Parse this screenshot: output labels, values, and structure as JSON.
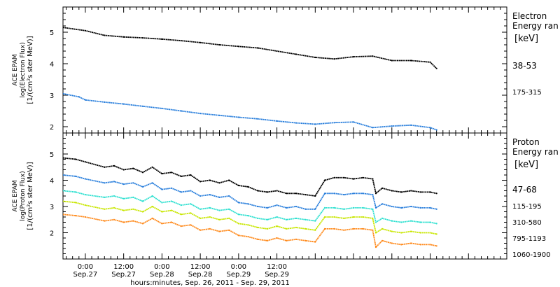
{
  "chart_data": [
    {
      "type": "line",
      "ylabel_lines": [
        "ACE EPAM",
        "log(Electron Flux)",
        "[1/(cm²s ster MeV)]"
      ],
      "ylim": [
        1.8,
        5.8
      ],
      "yticks": [
        2,
        3,
        4,
        5
      ],
      "legend_title": [
        "Electron",
        "Energy ran"
      ],
      "legend_unit": "[keV]",
      "series": [
        {
          "name": "38-53",
          "color": "#000000",
          "x": [
            -7,
            0,
            6,
            12,
            18,
            24,
            30,
            36,
            42,
            48,
            54,
            60,
            66,
            72,
            78,
            84,
            90,
            96,
            102,
            108,
            110
          ],
          "y": [
            5.15,
            5.05,
            4.9,
            4.85,
            4.82,
            4.78,
            4.73,
            4.67,
            4.6,
            4.55,
            4.5,
            4.4,
            4.3,
            4.2,
            4.15,
            4.22,
            4.24,
            4.1,
            4.1,
            4.05,
            3.85
          ]
        },
        {
          "name": "175-315",
          "color": "#2a7fdc",
          "x": [
            -7,
            -2,
            0,
            6,
            12,
            18,
            24,
            30,
            36,
            42,
            48,
            54,
            60,
            66,
            72,
            78,
            84,
            90,
            96,
            102,
            108,
            110
          ],
          "y": [
            3.05,
            2.95,
            2.85,
            2.78,
            2.72,
            2.65,
            2.58,
            2.5,
            2.42,
            2.36,
            2.3,
            2.25,
            2.18,
            2.12,
            2.08,
            2.13,
            2.15,
            1.97,
            2.02,
            2.05,
            1.97,
            1.9
          ]
        }
      ]
    },
    {
      "type": "line",
      "ylabel_lines": [
        "ACE EPAM",
        "log(Proton Flux)",
        "[1/(cm²s ster MeV)]"
      ],
      "ylim": [
        1.0,
        5.8
      ],
      "yticks": [
        2,
        3,
        4,
        5
      ],
      "legend_title": [
        "Proton",
        "Energy ran"
      ],
      "legend_unit": "[keV]",
      "series": [
        {
          "name": "47-68",
          "color": "#000000",
          "x": [
            -7,
            -3,
            0,
            6,
            9,
            12,
            15,
            18,
            21,
            24,
            27,
            30,
            33,
            36,
            39,
            42,
            45,
            48,
            51,
            54,
            57,
            60,
            63,
            66,
            69,
            72,
            75,
            78,
            81,
            84,
            87,
            90,
            91,
            93,
            96,
            99,
            102,
            105,
            108,
            110
          ],
          "y": [
            4.85,
            4.8,
            4.7,
            4.5,
            4.55,
            4.4,
            4.45,
            4.3,
            4.5,
            4.25,
            4.3,
            4.15,
            4.2,
            3.95,
            4.0,
            3.9,
            4.0,
            3.8,
            3.75,
            3.6,
            3.55,
            3.6,
            3.5,
            3.5,
            3.45,
            3.4,
            4.0,
            4.1,
            4.1,
            4.05,
            4.1,
            4.05,
            3.5,
            3.7,
            3.6,
            3.55,
            3.6,
            3.55,
            3.55,
            3.5
          ]
        },
        {
          "name": "115-195",
          "color": "#2a7fdc",
          "x": [
            -7,
            -3,
            0,
            6,
            9,
            12,
            15,
            18,
            21,
            24,
            27,
            30,
            33,
            36,
            39,
            42,
            45,
            48,
            51,
            54,
            57,
            60,
            63,
            66,
            69,
            72,
            75,
            78,
            81,
            84,
            87,
            90,
            91,
            93,
            96,
            99,
            102,
            105,
            108,
            110
          ],
          "y": [
            4.2,
            4.15,
            4.05,
            3.9,
            3.95,
            3.85,
            3.9,
            3.75,
            3.9,
            3.65,
            3.7,
            3.55,
            3.6,
            3.4,
            3.45,
            3.35,
            3.4,
            3.15,
            3.1,
            3.0,
            2.95,
            3.05,
            2.95,
            3.0,
            2.9,
            2.9,
            3.5,
            3.5,
            3.45,
            3.5,
            3.5,
            3.45,
            2.95,
            3.1,
            3.0,
            2.95,
            3.0,
            2.95,
            2.95,
            2.9
          ]
        },
        {
          "name": "310-580",
          "color": "#2ee0d0",
          "x": [
            -7,
            -3,
            0,
            6,
            9,
            12,
            15,
            18,
            21,
            24,
            27,
            30,
            33,
            36,
            39,
            42,
            45,
            48,
            51,
            54,
            57,
            60,
            63,
            66,
            69,
            72,
            75,
            78,
            81,
            84,
            87,
            90,
            91,
            93,
            96,
            99,
            102,
            105,
            108,
            110
          ],
          "y": [
            3.6,
            3.55,
            3.45,
            3.35,
            3.4,
            3.3,
            3.35,
            3.2,
            3.4,
            3.15,
            3.2,
            3.05,
            3.1,
            2.9,
            2.95,
            2.85,
            2.9,
            2.7,
            2.65,
            2.55,
            2.5,
            2.6,
            2.5,
            2.55,
            2.5,
            2.45,
            2.95,
            2.95,
            2.9,
            2.95,
            2.95,
            2.9,
            2.4,
            2.55,
            2.45,
            2.4,
            2.45,
            2.4,
            2.4,
            2.35
          ]
        },
        {
          "name": "795-1193",
          "color": "#c8e600",
          "x": [
            -7,
            -3,
            0,
            6,
            9,
            12,
            15,
            18,
            21,
            24,
            27,
            30,
            33,
            36,
            39,
            42,
            45,
            48,
            51,
            54,
            57,
            60,
            63,
            66,
            69,
            72,
            75,
            78,
            81,
            84,
            87,
            90,
            91,
            93,
            96,
            99,
            102,
            105,
            108,
            110
          ],
          "y": [
            3.2,
            3.15,
            3.05,
            2.9,
            2.95,
            2.85,
            2.9,
            2.8,
            3.0,
            2.8,
            2.85,
            2.7,
            2.75,
            2.55,
            2.6,
            2.5,
            2.55,
            2.35,
            2.3,
            2.2,
            2.15,
            2.25,
            2.15,
            2.2,
            2.15,
            2.1,
            2.6,
            2.6,
            2.55,
            2.6,
            2.6,
            2.55,
            2.0,
            2.15,
            2.05,
            2.0,
            2.05,
            2.0,
            2.0,
            1.95
          ]
        },
        {
          "name": "1060-1900",
          "color": "#ff8a1c",
          "x": [
            -7,
            -3,
            0,
            6,
            9,
            12,
            15,
            18,
            21,
            24,
            27,
            30,
            33,
            36,
            39,
            42,
            45,
            48,
            51,
            54,
            57,
            60,
            63,
            66,
            69,
            72,
            75,
            78,
            81,
            84,
            87,
            90,
            91,
            93,
            96,
            99,
            102,
            105,
            108,
            110
          ],
          "y": [
            2.7,
            2.65,
            2.6,
            2.45,
            2.5,
            2.4,
            2.45,
            2.35,
            2.55,
            2.35,
            2.4,
            2.25,
            2.3,
            2.1,
            2.15,
            2.05,
            2.1,
            1.9,
            1.85,
            1.75,
            1.7,
            1.8,
            1.7,
            1.75,
            1.7,
            1.65,
            2.15,
            2.15,
            2.1,
            2.15,
            2.15,
            2.1,
            1.45,
            1.7,
            1.6,
            1.55,
            1.6,
            1.55,
            1.55,
            1.5
          ]
        }
      ]
    }
  ],
  "x_axis": {
    "xlim": [
      -7,
      132
    ],
    "ticks": [
      {
        "x": 0,
        "time": "0:00",
        "date": "Sep.27"
      },
      {
        "x": 12,
        "time": "12:00",
        "date": "Sep.27"
      },
      {
        "x": 24,
        "time": "0:00",
        "date": "Sep.28"
      },
      {
        "x": 36,
        "time": "12:00",
        "date": "Sep.28"
      },
      {
        "x": 48,
        "time": "0:00",
        "date": "Sep.29"
      },
      {
        "x": 60,
        "time": "12:00",
        "date": "Sep.29"
      }
    ],
    "label": "hours:minutes, Sep. 26, 2011 - Sep. 29, 2011"
  }
}
